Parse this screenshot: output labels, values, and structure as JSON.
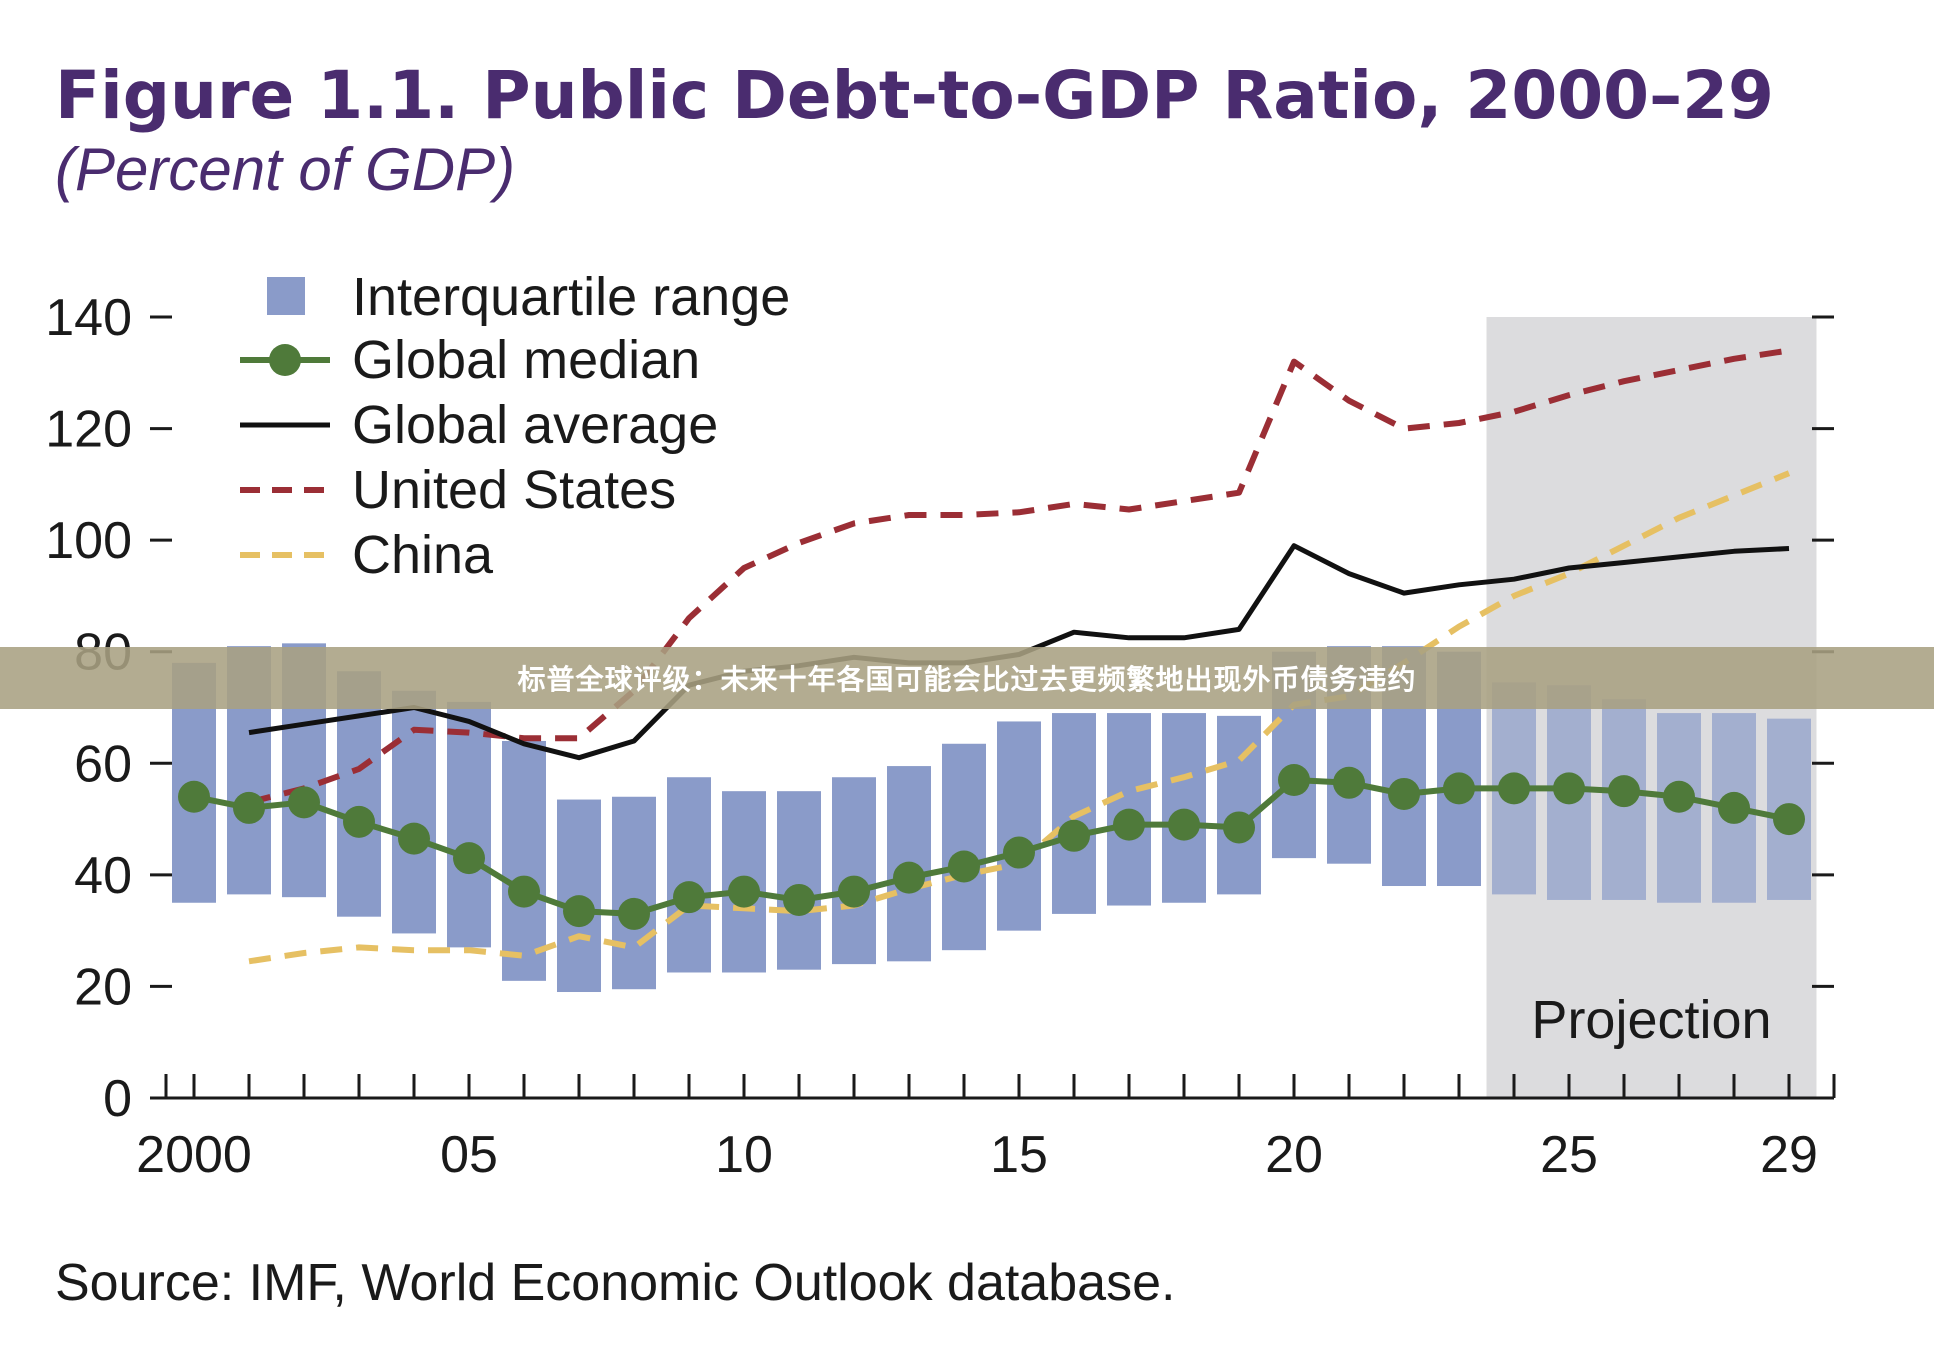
{
  "title": "Figure 1.1. Public Debt-to-GDP Ratio, 2000–29",
  "subtitle": "(Percent of GDP)",
  "source": "Source: IMF, World Economic Outlook database.",
  "banner_text": "标普全球评级：未来十年各国可能会比过去更频繁地出现外币债务违约",
  "colors": {
    "title": "#4a2c6f",
    "iqr": "#8a9bc9",
    "iqr_projection": "#a3afcf",
    "median": "#4f7a3a",
    "average": "#111111",
    "us": "#9b2e35",
    "china": "#e6c063",
    "projection_bg": "#dcdcde"
  },
  "chart_data": {
    "type": "line",
    "projection_label": "Projection",
    "projection_start": 2024,
    "xlim": [
      2000,
      2029
    ],
    "ylim": [
      0,
      140
    ],
    "yticks": [
      0,
      20,
      40,
      60,
      80,
      100,
      120,
      140
    ],
    "ytick_labels": [
      "0",
      "20",
      "40",
      "60",
      "80",
      "100",
      "120",
      "140"
    ],
    "xtick_labels": [
      {
        "x": 2000,
        "label": "2000"
      },
      {
        "x": 2005,
        "label": "05"
      },
      {
        "x": 2010,
        "label": "10"
      },
      {
        "x": 2015,
        "label": "15"
      },
      {
        "x": 2020,
        "label": "20"
      },
      {
        "x": 2025,
        "label": "25"
      },
      {
        "x": 2029,
        "label": "29"
      }
    ],
    "legend": [
      "Interquartile range",
      "Global median",
      "Global average",
      "United States",
      "China"
    ],
    "iqr": {
      "name": "Interquartile range",
      "x": [
        2000,
        2001,
        2002,
        2003,
        2004,
        2005,
        2006,
        2007,
        2008,
        2009,
        2010,
        2011,
        2012,
        2013,
        2014,
        2015,
        2016,
        2017,
        2018,
        2019,
        2020,
        2021,
        2022,
        2023,
        2024,
        2025,
        2026,
        2027,
        2028,
        2029
      ],
      "low": [
        35,
        36.5,
        36,
        32.5,
        29.5,
        27,
        21,
        19,
        19.5,
        22.5,
        22.5,
        23,
        24,
        24.5,
        26.5,
        30,
        33,
        34.5,
        35,
        36.5,
        43,
        42,
        38,
        38,
        36.5,
        35.5,
        35.5,
        35,
        35,
        35.5
      ],
      "high": [
        78,
        81,
        81.5,
        76.5,
        73,
        71,
        64,
        53.5,
        54,
        57.5,
        55,
        55,
        57.5,
        59.5,
        63.5,
        67.5,
        69,
        69,
        69,
        68.5,
        80,
        81,
        81,
        80,
        74.5,
        74,
        71.5,
        69,
        69,
        68
      ]
    },
    "series": [
      {
        "name": "Global median",
        "x": [
          2000,
          2001,
          2002,
          2003,
          2004,
          2005,
          2006,
          2007,
          2008,
          2009,
          2010,
          2011,
          2012,
          2013,
          2014,
          2015,
          2016,
          2017,
          2018,
          2019,
          2020,
          2021,
          2022,
          2023,
          2024,
          2025,
          2026,
          2027,
          2028,
          2029
        ],
        "values": [
          54,
          52,
          53,
          49.5,
          46.5,
          43,
          37,
          33.5,
          33,
          36,
          37,
          35.5,
          37,
          39.5,
          41.5,
          44,
          47,
          49,
          49,
          48.5,
          57,
          56.5,
          54.5,
          55.5,
          55.5,
          55.5,
          55,
          54,
          52,
          50
        ]
      },
      {
        "name": "Global average",
        "x": [
          2001,
          2002,
          2003,
          2004,
          2005,
          2006,
          2007,
          2008,
          2009,
          2010,
          2011,
          2012,
          2013,
          2014,
          2015,
          2016,
          2017,
          2018,
          2019,
          2020,
          2021,
          2022,
          2023,
          2024,
          2025,
          2026,
          2027,
          2028,
          2029
        ],
        "values": [
          65.5,
          67,
          68.5,
          70,
          67.5,
          63.5,
          61,
          64,
          74,
          76.5,
          77.5,
          79,
          78,
          78,
          79.5,
          83.5,
          82.5,
          82.5,
          84,
          99,
          94,
          90.5,
          92,
          93,
          95,
          96,
          97,
          98,
          98.5
        ]
      },
      {
        "name": "United States",
        "x": [
          2001,
          2002,
          2003,
          2004,
          2005,
          2006,
          2007,
          2008,
          2009,
          2010,
          2011,
          2012,
          2013,
          2014,
          2015,
          2016,
          2017,
          2018,
          2019,
          2020,
          2021,
          2022,
          2023,
          2024,
          2025,
          2026,
          2027,
          2028,
          2029
        ],
        "values": [
          53,
          55.5,
          59,
          66,
          65.5,
          64.5,
          64.5,
          73,
          86,
          95,
          99.5,
          103,
          104.5,
          104.5,
          105,
          106.5,
          105.5,
          107,
          108.5,
          132,
          125,
          120,
          121,
          123,
          126,
          128.5,
          130.5,
          132.5,
          134
        ]
      },
      {
        "name": "China",
        "x": [
          2001,
          2002,
          2003,
          2004,
          2005,
          2006,
          2007,
          2008,
          2009,
          2010,
          2011,
          2012,
          2013,
          2014,
          2015,
          2016,
          2017,
          2018,
          2019,
          2020,
          2021,
          2022,
          2023,
          2024,
          2025,
          2026,
          2027,
          2028,
          2029
        ],
        "values": [
          24.5,
          26,
          27,
          26.5,
          26.5,
          25.5,
          29,
          27,
          34.5,
          34,
          33.5,
          34.5,
          37.5,
          40,
          42,
          50.5,
          55,
          57.5,
          60.5,
          70.5,
          72,
          78,
          84.5,
          90,
          94,
          99,
          104,
          108,
          112
        ]
      }
    ]
  }
}
